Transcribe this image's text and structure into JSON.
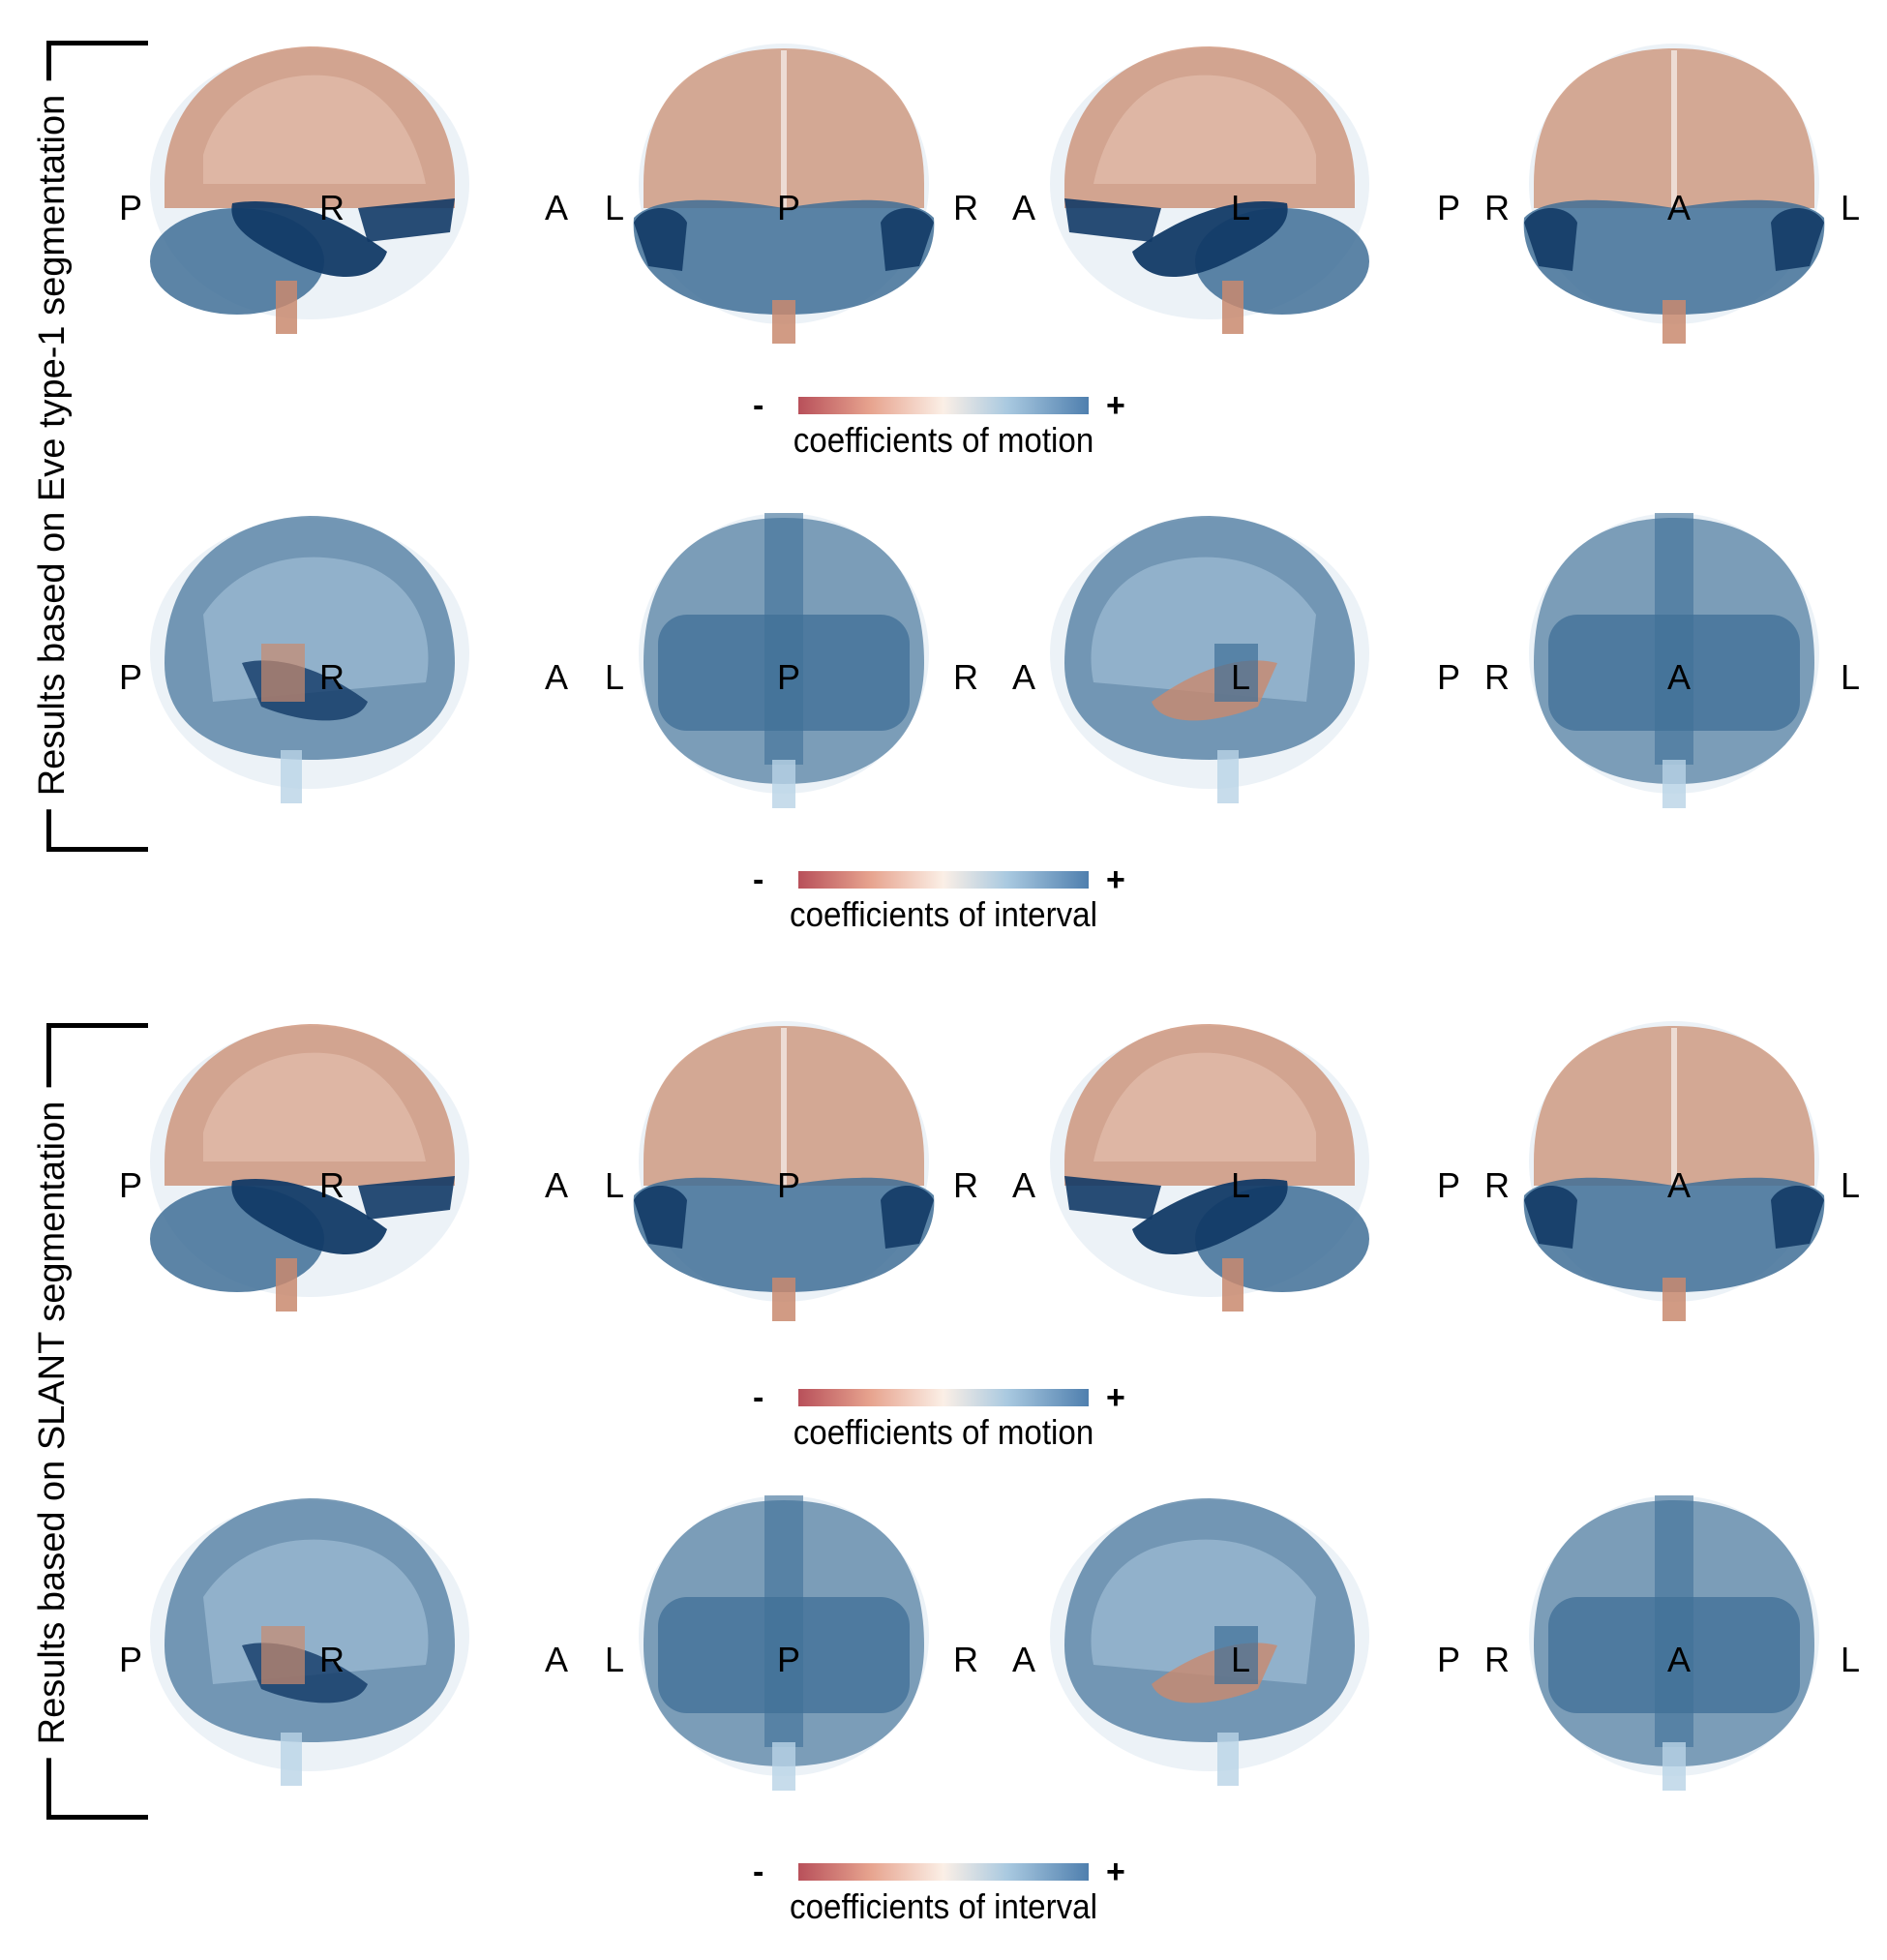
{
  "sections": [
    {
      "label": "Results based on Eve type-1 segmentation",
      "rows": [
        {
          "colorbar": {
            "minus": "-",
            "plus": "+",
            "label": "coefficients of motion"
          },
          "scheme": "motion"
        },
        {
          "colorbar": {
            "minus": "-",
            "plus": "+",
            "label": "coefficients of interval"
          },
          "scheme": "interval"
        }
      ]
    },
    {
      "label": "Results based on SLANT segmentation",
      "rows": [
        {
          "colorbar": {
            "minus": "-",
            "plus": "+",
            "label": "coefficients of motion"
          },
          "scheme": "motion"
        },
        {
          "colorbar": {
            "minus": "-",
            "plus": "+",
            "label": "coefficients of interval"
          },
          "scheme": "interval"
        }
      ]
    }
  ],
  "views": [
    {
      "left": "P",
      "center": "R",
      "right": "A"
    },
    {
      "left": "L",
      "center": "P",
      "right": "R"
    },
    {
      "left": "A",
      "center": "L",
      "right": "P"
    },
    {
      "left": "R",
      "center": "A",
      "right": "L"
    }
  ],
  "colors": {
    "warm": "#c98a6e",
    "warm_light": "#e6c3b2",
    "cool_dark": "#123a66",
    "cool_mid": "#3f6f97",
    "cool_light": "#b9d3e6",
    "ghost": "#dce8f1"
  }
}
